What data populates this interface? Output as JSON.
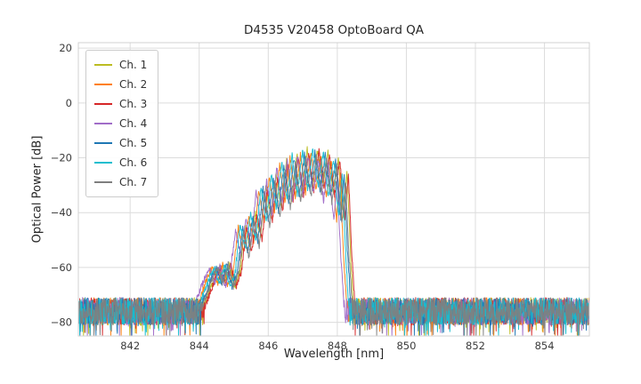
{
  "title": "D4535 V20458 OptoBoard QA",
  "chart_data": {
    "type": "line",
    "title": "D4535 V20458 OptoBoard QA",
    "xlabel": "Wavelength [nm]",
    "ylabel": "Optical Power [dB]",
    "xlim": [
      840.5,
      855.3
    ],
    "ylim": [
      -85,
      22
    ],
    "xticks": [
      842,
      844,
      846,
      848,
      850,
      852,
      854
    ],
    "yticks": [
      20,
      0,
      -20,
      -40,
      -60,
      -80
    ],
    "grid": true,
    "grid_color": "#dcdcdc",
    "axes_border_color": "#d0d0d0",
    "legend_position": "upper-left",
    "noise_floor_db": -76,
    "noise_amplitude_db": 5,
    "sample_step_nm": 0.01,
    "envelope": [
      [
        840.5,
        -76
      ],
      [
        844.0,
        -76
      ],
      [
        844.35,
        -64
      ],
      [
        844.5,
        -60
      ],
      [
        844.65,
        -66
      ],
      [
        844.8,
        -59
      ],
      [
        844.95,
        -67
      ],
      [
        845.1,
        -62
      ],
      [
        845.25,
        -45
      ],
      [
        845.4,
        -54
      ],
      [
        845.55,
        -41
      ],
      [
        845.7,
        -50
      ],
      [
        845.85,
        -31
      ],
      [
        846.0,
        -43
      ],
      [
        846.15,
        -27
      ],
      [
        846.3,
        -39
      ],
      [
        846.45,
        -22
      ],
      [
        846.6,
        -36
      ],
      [
        846.75,
        -19.5
      ],
      [
        846.9,
        -34
      ],
      [
        847.05,
        -18
      ],
      [
        847.2,
        -32
      ],
      [
        847.35,
        -17.5
      ],
      [
        847.5,
        -31
      ],
      [
        847.65,
        -18.5
      ],
      [
        847.8,
        -34
      ],
      [
        847.95,
        -21
      ],
      [
        848.1,
        -42
      ],
      [
        848.2,
        -26
      ],
      [
        848.3,
        -55
      ],
      [
        848.4,
        -76
      ],
      [
        855.3,
        -76
      ]
    ],
    "series": [
      {
        "name": "Ch. 1",
        "color": "#bcbd22",
        "offset_nm": 0.08,
        "peak_adjust_db": 1.0,
        "seed": 11
      },
      {
        "name": "Ch. 2",
        "color": "#ff7f0e",
        "offset_nm": -0.12,
        "peak_adjust_db": -0.5,
        "seed": 22
      },
      {
        "name": "Ch. 3",
        "color": "#d62728",
        "offset_nm": 0.12,
        "peak_adjust_db": 0.0,
        "seed": 33
      },
      {
        "name": "Ch. 4",
        "color": "#a06cc8",
        "offset_nm": -0.2,
        "peak_adjust_db": -1.5,
        "seed": 44
      },
      {
        "name": "Ch. 5",
        "color": "#1f77b4",
        "offset_nm": 0.0,
        "peak_adjust_db": -0.5,
        "seed": 55
      },
      {
        "name": "Ch. 6",
        "color": "#17becf",
        "offset_nm": -0.06,
        "peak_adjust_db": 0.5,
        "seed": 66
      },
      {
        "name": "Ch. 7",
        "color": "#7f7f7f",
        "offset_nm": 0.04,
        "peak_adjust_db": -2.0,
        "seed": 77
      }
    ]
  }
}
